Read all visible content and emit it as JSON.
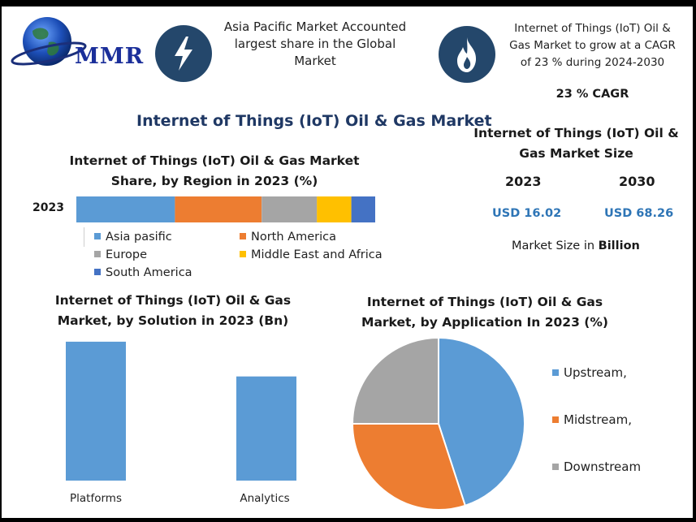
{
  "brand": {
    "logo_text": "MMR"
  },
  "highlights": {
    "region_text": "Asia Pacific Market Accounted largest share in the Global Market",
    "region_lines": [
      "Asia Pacific Market Accounted",
      "largest share in the Global",
      "Market"
    ],
    "cagr_lines": [
      "Internet of Things (IoT) Oil &",
      "Gas Market to grow at a CAGR",
      "of 23 % during 2024-2030"
    ],
    "cagr_label": "23 % CAGR"
  },
  "main_title": "Internet of Things (IoT) Oil & Gas Market",
  "market_size": {
    "title_lines": [
      "Internet of Things (IoT) Oil &",
      "Gas Market Size"
    ],
    "year_start": "2023",
    "year_end": "2030",
    "value_start": "USD 16.02",
    "value_end": "USD 68.26",
    "unit_prefix": "Market Size in ",
    "unit_bold": "Billion"
  },
  "chart_data": [
    {
      "type": "bar",
      "orientation": "horizontal-stacked",
      "title_lines": [
        "Internet of Things (IoT) Oil & Gas Market",
        "Share, by Region in 2023 (%)"
      ],
      "categories": [
        "2023"
      ],
      "series": [
        {
          "name": "Asia pasific",
          "values": [
            33
          ],
          "color": "#5b9bd5"
        },
        {
          "name": "North America",
          "values": [
            29
          ],
          "color": "#ed7d31"
        },
        {
          "name": "Europe",
          "values": [
            18.5
          ],
          "color": "#a5a5a5"
        },
        {
          "name": "Middle East and Africa",
          "values": [
            11.5
          ],
          "color": "#ffc000"
        },
        {
          "name": "South America",
          "values": [
            8
          ],
          "color": "#4472c4"
        }
      ],
      "legend": "bottom"
    },
    {
      "type": "bar",
      "title_lines": [
        "Internet of Things (IoT) Oil & Gas",
        "Market, by Solution in 2023 (Bn)"
      ],
      "categories": [
        "Platforms",
        "Analytics"
      ],
      "values": [
        9.2,
        6.9
      ],
      "ylim": [
        0,
        10
      ],
      "color": "#5b9bd5"
    },
    {
      "type": "pie",
      "title_lines": [
        "Internet of Things (IoT) Oil & Gas",
        "Market, by Application In 2023 (%)"
      ],
      "labels": [
        "Upstream,",
        "Midstream,",
        "Downstream"
      ],
      "values": [
        45,
        30,
        25
      ],
      "colors": [
        "#5b9bd5",
        "#ed7d31",
        "#a5a5a5"
      ],
      "legend": "right"
    }
  ]
}
